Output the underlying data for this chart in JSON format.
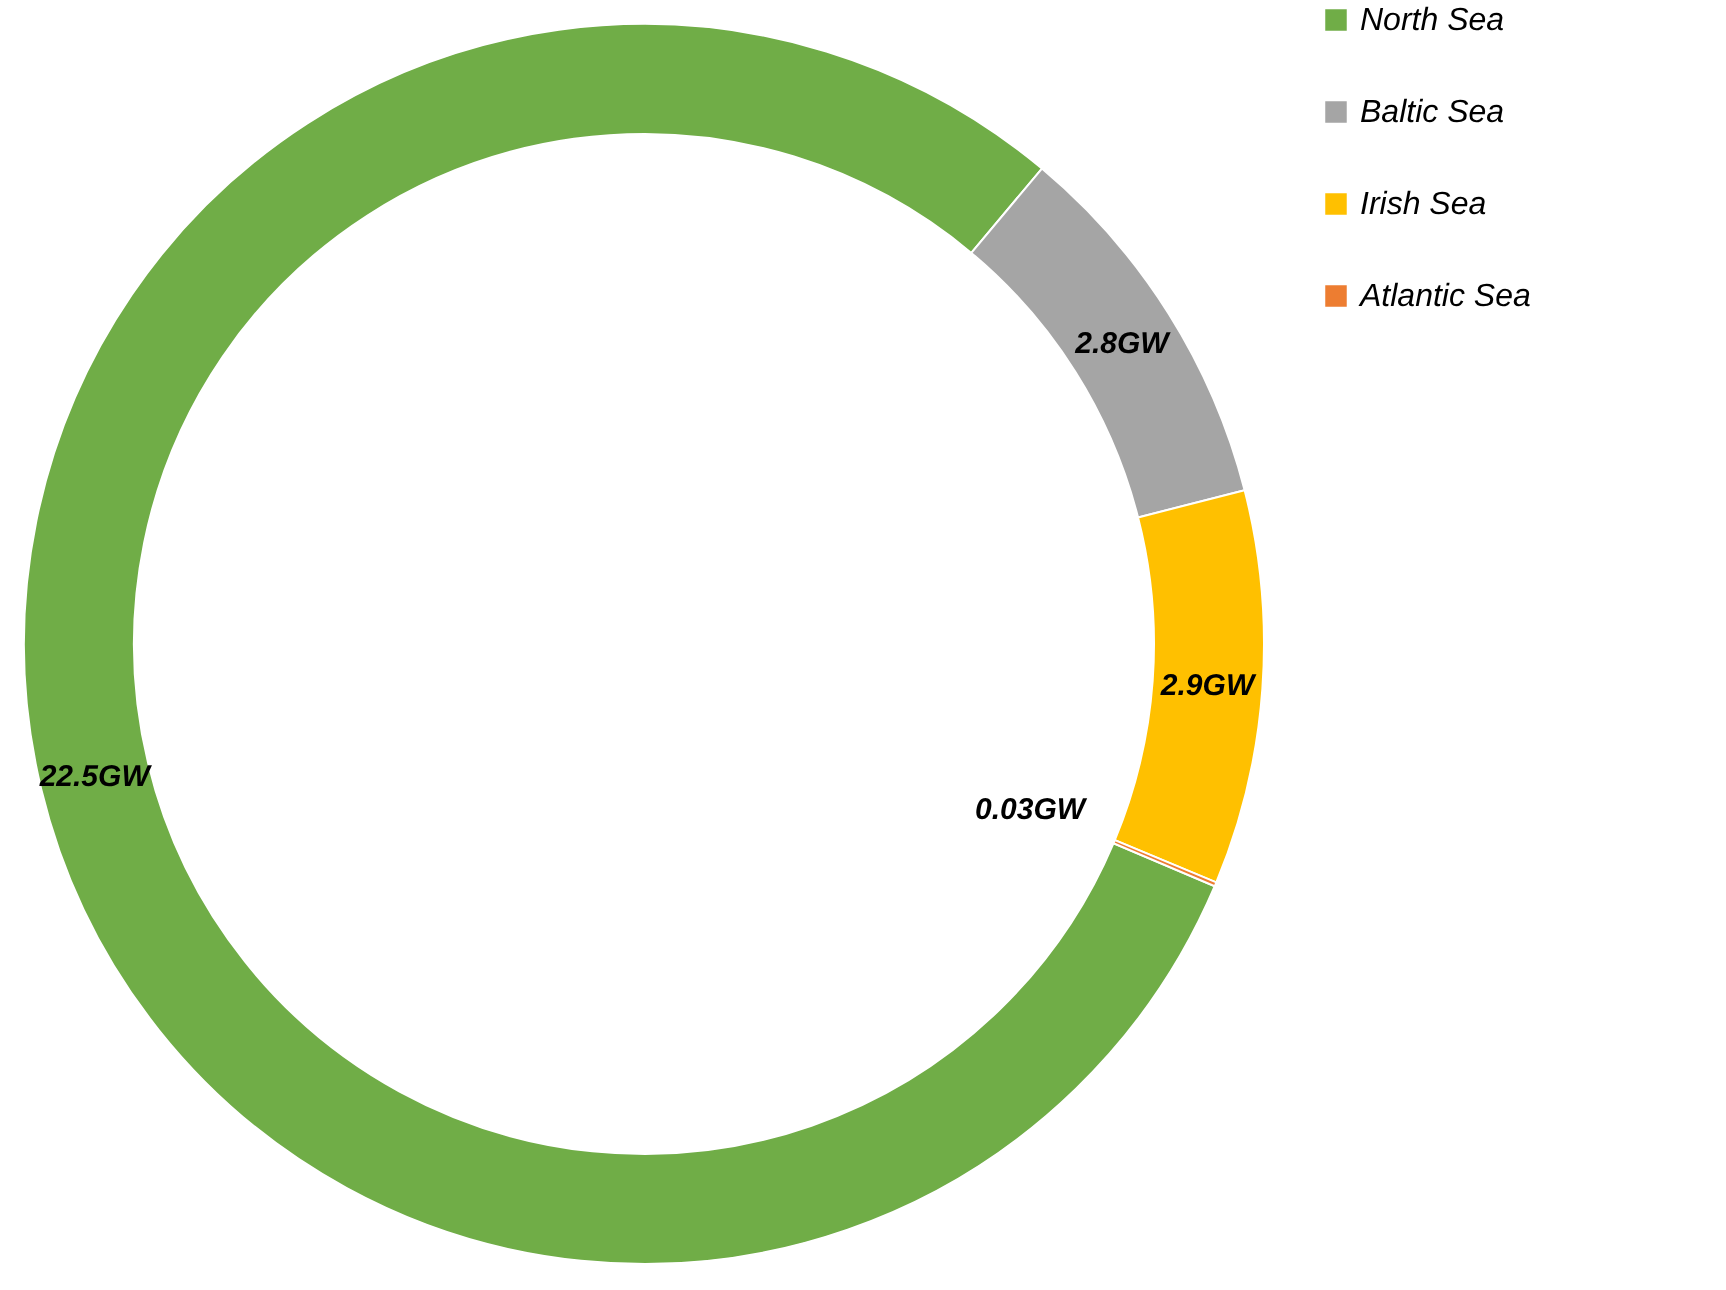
{
  "chart_data": {
    "type": "donut",
    "categories": [
      "North Sea",
      "Baltic Sea",
      "Irish Sea",
      "Atlantic Sea"
    ],
    "values": [
      22.5,
      2.8,
      2.9,
      0.03
    ],
    "colors": [
      "#70ad47",
      "#a5a5a5",
      "#ffc000",
      "#ed7d31"
    ],
    "value_labels": [
      "22.5GW",
      "2.8GW",
      "2.9GW",
      "0.03GW"
    ],
    "legend": "right"
  }
}
